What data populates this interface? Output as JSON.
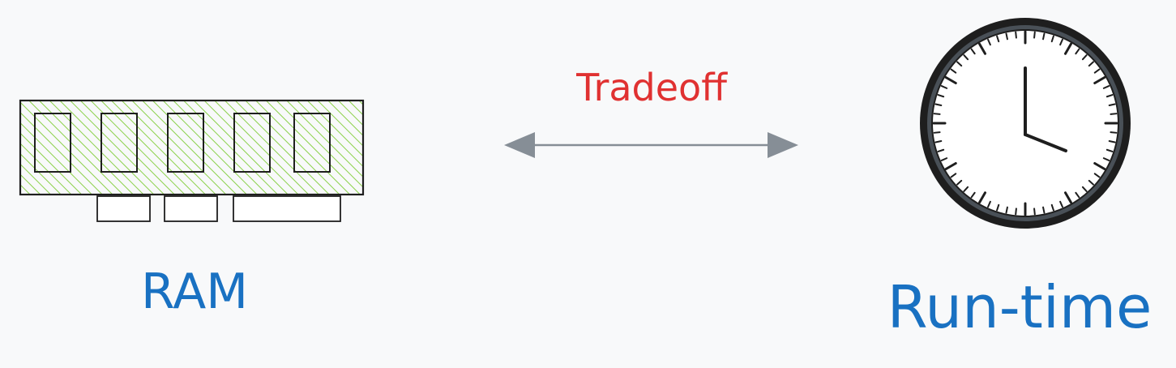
{
  "labels": {
    "tradeoff": "Tradeoff",
    "ram": "RAM",
    "runtime": "Run-time"
  },
  "colors": {
    "background": "#f8f9fa",
    "tradeoff_text": "#e03131",
    "label_text": "#1971c2",
    "ram_fill": "#8bd14a",
    "arrow": "#868e96",
    "outline": "#1e1e1e",
    "clock_bezel": "#495057"
  },
  "icons": {
    "left": "ram-module-icon",
    "right": "clock-icon",
    "connector": "double-headed-arrow"
  }
}
